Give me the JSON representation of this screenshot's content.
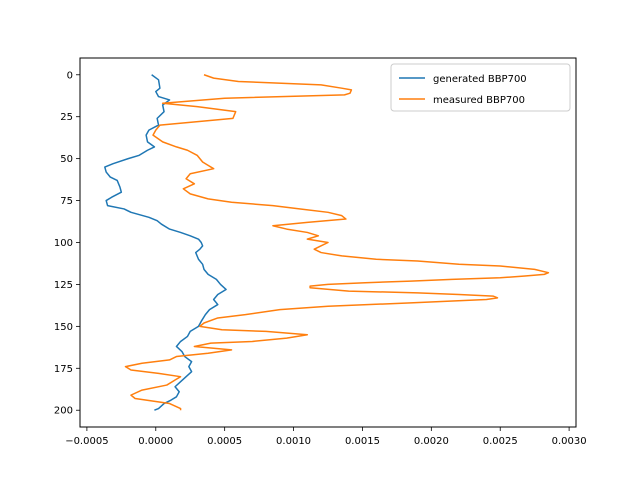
{
  "chart_data": {
    "type": "line",
    "title": "",
    "xlabel": "",
    "ylabel": "",
    "xlim": [
      -0.00055,
      0.00305
    ],
    "ylim": [
      210,
      -10
    ],
    "y_inverted": true,
    "grid": false,
    "legend_position": "top-right",
    "x_ticks": [
      -0.0005,
      0.0,
      0.0005,
      0.001,
      0.0015,
      0.002,
      0.0025,
      0.003
    ],
    "x_tick_labels": [
      "−0.0005",
      "0.0000",
      "0.0005",
      "0.0010",
      "0.0015",
      "0.0020",
      "0.0025",
      "0.0030"
    ],
    "y_ticks": [
      0,
      25,
      50,
      75,
      100,
      125,
      150,
      175,
      200
    ],
    "y_tick_labels": [
      "0",
      "25",
      "50",
      "75",
      "100",
      "125",
      "150",
      "175",
      "200"
    ],
    "series": [
      {
        "name": "generated BBP700",
        "color": "#1f77b4",
        "points": [
          [
            -3e-05,
            0
          ],
          [
            2e-05,
            3
          ],
          [
            3e-05,
            8
          ],
          [
            0.0,
            10
          ],
          [
            2e-05,
            13
          ],
          [
            0.0001,
            15
          ],
          [
            5e-05,
            18
          ],
          [
            6e-05,
            22
          ],
          [
            1e-05,
            26
          ],
          [
            2e-05,
            30
          ],
          [
            -5e-05,
            33
          ],
          [
            -7e-05,
            36
          ],
          [
            -6e-05,
            40
          ],
          [
            -1e-05,
            43
          ],
          [
            -6e-05,
            45
          ],
          [
            -0.00012,
            48
          ],
          [
            -0.0002,
            50
          ],
          [
            -0.00031,
            53
          ],
          [
            -0.00037,
            55
          ],
          [
            -0.00036,
            58
          ],
          [
            -0.00033,
            61
          ],
          [
            -0.00028,
            63
          ],
          [
            -0.00026,
            67
          ],
          [
            -0.00025,
            70
          ],
          [
            -0.00032,
            73
          ],
          [
            -0.00036,
            75
          ],
          [
            -0.00035,
            78
          ],
          [
            -0.00023,
            80
          ],
          [
            -0.00018,
            82
          ],
          [
            -5e-05,
            85
          ],
          [
            1e-05,
            87
          ],
          [
            4e-05,
            89
          ],
          [
            0.0001,
            92
          ],
          [
            0.00018,
            94
          ],
          [
            0.00025,
            96
          ],
          [
            0.00031,
            98
          ],
          [
            0.00033,
            100
          ],
          [
            0.00034,
            102
          ],
          [
            0.00032,
            104
          ],
          [
            0.00029,
            106
          ],
          [
            0.00031,
            110
          ],
          [
            0.00034,
            113
          ],
          [
            0.00035,
            116
          ],
          [
            0.00038,
            119
          ],
          [
            0.00044,
            122
          ],
          [
            0.00047,
            125
          ],
          [
            0.00051,
            128
          ],
          [
            0.00045,
            131
          ],
          [
            0.00042,
            134
          ],
          [
            0.00045,
            137
          ],
          [
            0.00039,
            140
          ],
          [
            0.00036,
            143
          ],
          [
            0.00033,
            147
          ],
          [
            0.00031,
            150
          ],
          [
            0.00025,
            153
          ],
          [
            0.00023,
            156
          ],
          [
            0.00018,
            159
          ],
          [
            0.00015,
            162
          ],
          [
            0.00019,
            165
          ],
          [
            0.00021,
            168
          ],
          [
            0.00026,
            171
          ],
          [
            0.00024,
            174
          ],
          [
            0.00026,
            177
          ],
          [
            0.00022,
            180
          ],
          [
            0.00018,
            183
          ],
          [
            0.00014,
            186
          ],
          [
            0.00017,
            189
          ],
          [
            0.00015,
            192
          ],
          [
            0.00011,
            194
          ],
          [
            6e-05,
            196
          ],
          [
            2e-05,
            199
          ],
          [
            -1e-05,
            200
          ]
        ]
      },
      {
        "name": "measured BBP700",
        "color": "#ff7f0e",
        "points": [
          [
            0.00035,
            0
          ],
          [
            0.00042,
            2
          ],
          [
            0.0006,
            4
          ],
          [
            0.0012,
            6
          ],
          [
            0.00135,
            8
          ],
          [
            0.00142,
            9
          ],
          [
            0.00141,
            11
          ],
          [
            0.00137,
            12
          ],
          [
            0.0005,
            14
          ],
          [
            5e-05,
            17
          ],
          [
            0.0003,
            19
          ],
          [
            0.00058,
            22
          ],
          [
            0.00056,
            26
          ],
          [
            3e-05,
            30
          ],
          [
            0.0,
            33
          ],
          [
            -2e-05,
            36
          ],
          [
            5e-05,
            40
          ],
          [
            0.00015,
            43
          ],
          [
            0.00023,
            45
          ],
          [
            0.0003,
            48
          ],
          [
            0.00034,
            52
          ],
          [
            0.00038,
            54
          ],
          [
            0.00042,
            56
          ],
          [
            0.00025,
            59
          ],
          [
            0.00022,
            62
          ],
          [
            0.00028,
            65
          ],
          [
            0.0002,
            68
          ],
          [
            0.00025,
            71
          ],
          [
            0.00038,
            74
          ],
          [
            0.00055,
            76
          ],
          [
            0.00085,
            78
          ],
          [
            0.00105,
            80
          ],
          [
            0.00125,
            82
          ],
          [
            0.00135,
            84
          ],
          [
            0.00138,
            86
          ],
          [
            0.0011,
            88
          ],
          [
            0.00085,
            90
          ],
          [
            0.00095,
            92
          ],
          [
            0.0011,
            94
          ],
          [
            0.00118,
            96
          ],
          [
            0.0011,
            98
          ],
          [
            0.00125,
            100
          ],
          [
            0.0012,
            102
          ],
          [
            0.00115,
            104
          ],
          [
            0.0012,
            106
          ],
          [
            0.00135,
            108
          ],
          [
            0.0016,
            110
          ],
          [
            0.0019,
            111
          ],
          [
            0.0022,
            113
          ],
          [
            0.0025,
            114
          ],
          [
            0.00275,
            116
          ],
          [
            0.00285,
            118
          ],
          [
            0.00282,
            119
          ],
          [
            0.00268,
            120
          ],
          [
            0.0025,
            121
          ],
          [
            0.00215,
            122
          ],
          [
            0.00185,
            123
          ],
          [
            0.00152,
            124
          ],
          [
            0.00125,
            125
          ],
          [
            0.00112,
            126
          ],
          [
            0.00112,
            127
          ],
          [
            0.0014,
            129
          ],
          [
            0.0019,
            130
          ],
          [
            0.0022,
            131
          ],
          [
            0.00245,
            132
          ],
          [
            0.00248,
            133
          ],
          [
            0.0024,
            134
          ],
          [
            0.00185,
            136
          ],
          [
            0.00125,
            138
          ],
          [
            0.0009,
            140
          ],
          [
            0.00065,
            143
          ],
          [
            0.00045,
            145
          ],
          [
            0.00035,
            148
          ],
          [
            0.00032,
            150
          ],
          [
            0.00048,
            152
          ],
          [
            0.0008,
            153
          ],
          [
            0.0011,
            155
          ],
          [
            0.00095,
            157
          ],
          [
            0.0007,
            159
          ],
          [
            0.0004,
            160
          ],
          [
            0.00028,
            162
          ],
          [
            0.00055,
            164
          ],
          [
            0.00038,
            166
          ],
          [
            0.00015,
            168
          ],
          [
            0.0001,
            170
          ],
          [
            -0.0001,
            172
          ],
          [
            -0.00022,
            174
          ],
          [
            -0.00018,
            176
          ],
          [
            2e-05,
            178
          ],
          [
            0.00018,
            180
          ],
          [
            0.00014,
            182
          ],
          [
            8e-05,
            185
          ],
          [
            -0.0001,
            188
          ],
          [
            -0.00018,
            191
          ],
          [
            -0.00015,
            193
          ],
          [
            0.0001,
            196
          ],
          [
            0.00018,
            199
          ],
          [
            0.00018,
            200
          ]
        ]
      }
    ]
  }
}
